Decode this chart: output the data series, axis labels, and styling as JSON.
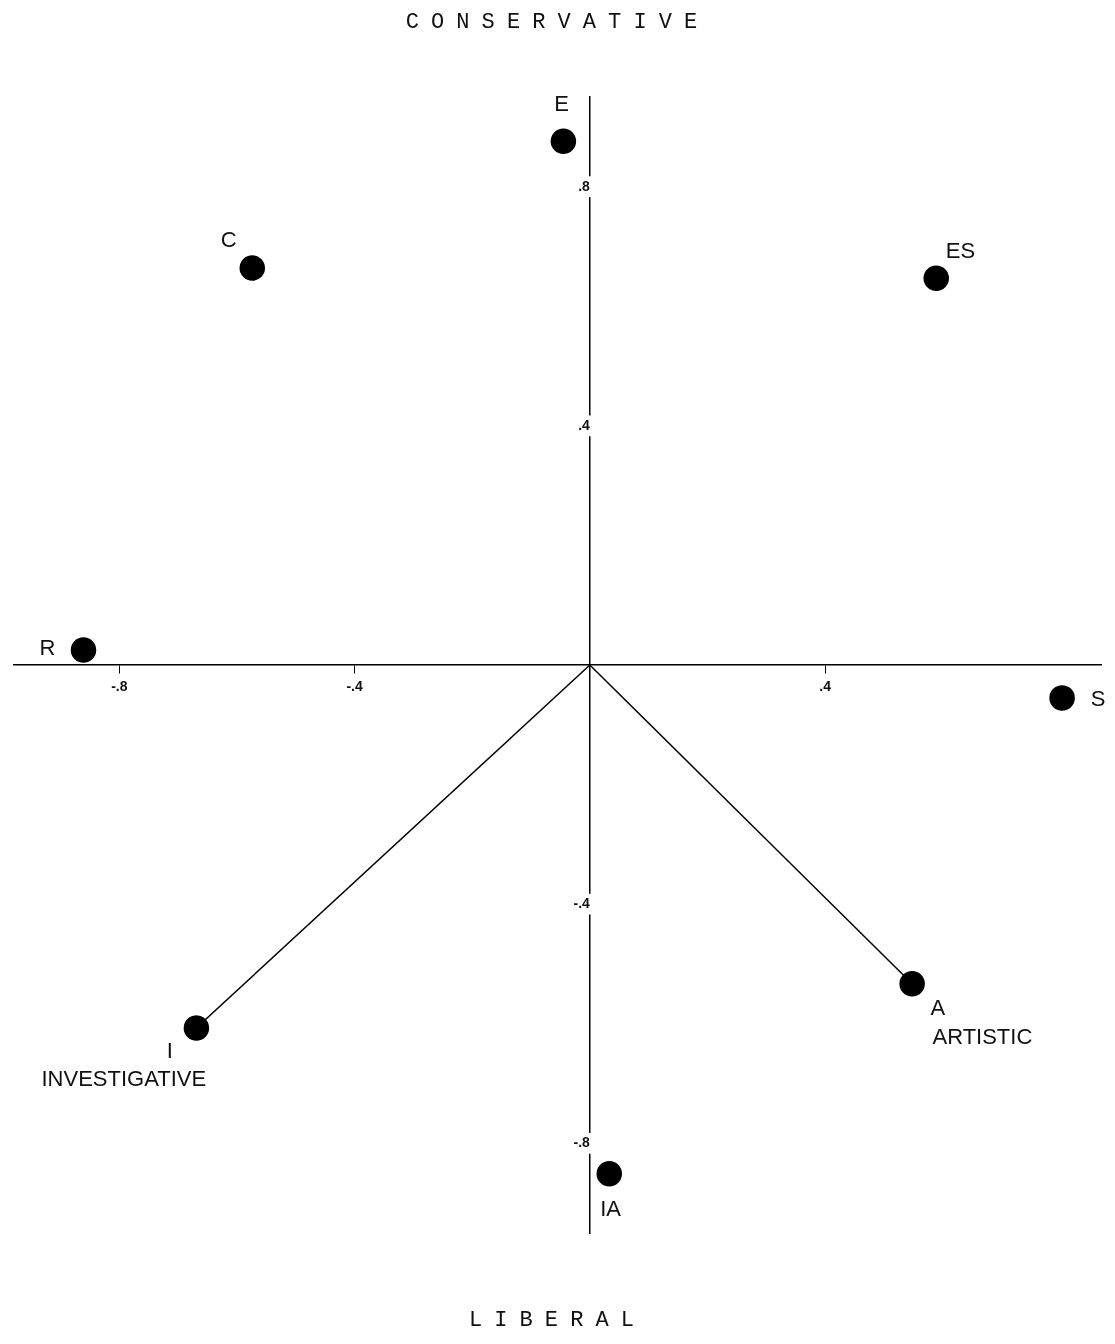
{
  "chart_data": {
    "type": "scatter",
    "title": "CONSERVATIVE",
    "xlabel": "LIBERAL",
    "xlim": [
      -0.98,
      0.87
    ],
    "ylim": [
      -0.95,
      0.95
    ],
    "xticks": [
      {
        "value": -0.8,
        "label": "-.8"
      },
      {
        "value": -0.4,
        "label": "-.4"
      },
      {
        "value": 0.4,
        "label": ".4"
      }
    ],
    "yticks": [
      {
        "value": -0.8,
        "label": "-.8"
      },
      {
        "value": -0.4,
        "label": "-.4"
      },
      {
        "value": 0.4,
        "label": ".4"
      },
      {
        "value": 0.8,
        "label": ".8"
      }
    ],
    "grid": false,
    "legend": false,
    "series": [
      {
        "type": "line",
        "color": "#000000",
        "marker": "none",
        "x": [
          0,
          -0.669
        ],
        "values": [
          0,
          -0.607
        ]
      },
      {
        "type": "line",
        "color": "#000000",
        "marker": "none",
        "x": [
          0,
          0.548
        ],
        "values": [
          0,
          -0.533
        ]
      },
      {
        "type": "scatter",
        "color": "#000000",
        "marker": "circle",
        "x": [
          -0.045,
          -0.574,
          0.589,
          -0.861,
          0.803,
          0.548,
          -0.669,
          0.033
        ],
        "values": [
          0.876,
          0.664,
          0.647,
          0.025,
          -0.055,
          -0.533,
          -0.607,
          -0.851
        ]
      }
    ],
    "annotations": [
      {
        "text": "E",
        "x": -0.045,
        "y": 0.876
      },
      {
        "text": "C",
        "x": -0.574,
        "y": 0.664
      },
      {
        "text": "ES",
        "x": 0.589,
        "y": 0.647
      },
      {
        "text": "R",
        "x": -0.861,
        "y": 0.025
      },
      {
        "text": "S",
        "x": 0.803,
        "y": -0.055
      },
      {
        "text": "A",
        "x": 0.548,
        "y": -0.533
      },
      {
        "text": "ARTISTIC",
        "x": 0.548,
        "y": -0.533
      },
      {
        "text": "I",
        "x": -0.669,
        "y": -0.607
      },
      {
        "text": "INVESTIGATIVE",
        "x": -0.669,
        "y": -0.607
      },
      {
        "text": "IA",
        "x": 0.033,
        "y": -0.851
      }
    ]
  }
}
